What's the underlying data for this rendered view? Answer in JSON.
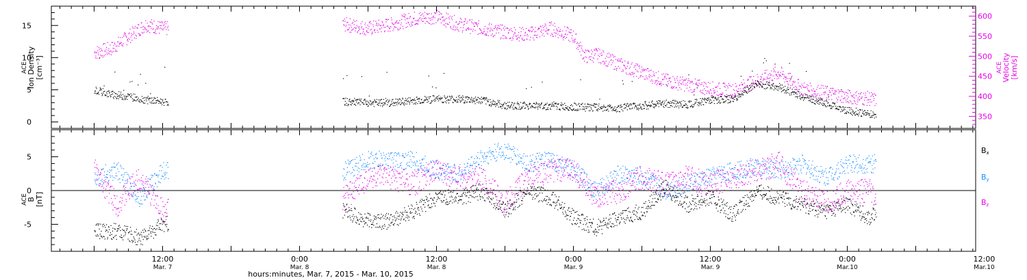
{
  "colors": {
    "density": "#000000",
    "velocity": "#e600e6",
    "bx": "#000000",
    "by": "#1a8cff",
    "bz": "#e600e6",
    "axis": "#000000"
  },
  "chart_data": [
    {
      "type": "scatter",
      "panel": "top",
      "ylabel_left": [
        "ACE",
        "Ion Density",
        "[cm⁻³]"
      ],
      "ylabel_right": [
        "ACE",
        "Velocity",
        "[km/s]"
      ],
      "ylim_left": [
        -1,
        18
      ],
      "yticks_left": [
        "0",
        "5",
        "10",
        "15"
      ],
      "ylim_right": [
        320,
        625
      ],
      "yticks_right": [
        "350",
        "400",
        "450",
        "500",
        "550",
        "600"
      ],
      "data_gaps_hours": [
        [
          13,
          43.5
        ]
      ],
      "series": [
        {
          "axis": "left",
          "x": [
            0,
            3,
            6,
            9,
            12,
            44,
            48,
            52,
            56,
            60,
            64,
            68,
            72,
            76,
            80,
            84,
            88,
            92,
            96,
            100,
            104,
            108,
            112,
            116,
            120,
            124,
            128,
            132,
            136,
            137
          ],
          "values": [
            5,
            4.3,
            4,
            3.5,
            3.2,
            3.2,
            3,
            3,
            3.4,
            3.6,
            3.6,
            3.4,
            2.6,
            2.6,
            2.5,
            2.4,
            2.3,
            2.2,
            2.6,
            2.9,
            2.8,
            3.5,
            3.6,
            6,
            5.5,
            4,
            3,
            1.8,
            1.3,
            1
          ]
        },
        {
          "axis": "right",
          "x": [
            0,
            3,
            5,
            7,
            9,
            12,
            44,
            48,
            52,
            56,
            60,
            64,
            68,
            72,
            76,
            80,
            84,
            86,
            88,
            92,
            96,
            100,
            104,
            108,
            112,
            116,
            120,
            124,
            128,
            132,
            136,
            137
          ],
          "values": [
            510,
            520,
            540,
            560,
            580,
            570,
            580,
            570,
            580,
            595,
            600,
            580,
            570,
            560,
            555,
            570,
            550,
            500,
            505,
            480,
            460,
            440,
            430,
            420,
            415,
            440,
            460,
            420,
            410,
            400,
            395,
            390
          ]
        }
      ]
    },
    {
      "type": "scatter",
      "panel": "bottom",
      "ylabel_left": [
        "ACE",
        "B",
        "[nT]"
      ],
      "ylim": [
        -9,
        9
      ],
      "yticks": [
        "-5",
        "0",
        "5"
      ],
      "data_gaps_hours": [
        [
          13,
          43.5
        ]
      ],
      "legend_position": "right",
      "series": [
        {
          "name": "Bx",
          "x": [
            0,
            4,
            8,
            12,
            44,
            48,
            52,
            56,
            60,
            64,
            68,
            72,
            76,
            80,
            84,
            88,
            92,
            96,
            100,
            104,
            108,
            112,
            116,
            120,
            124,
            128,
            132,
            136,
            137
          ],
          "values": [
            -6,
            -6,
            -7,
            -5,
            -3,
            -4.5,
            -4.5,
            -3,
            -1,
            -1,
            0,
            -3,
            0,
            -1,
            -4,
            -5.5,
            -4,
            -3,
            0.5,
            -2,
            -1,
            -3.5,
            0,
            -1,
            -2,
            -3,
            -2,
            -4,
            -3
          ]
        },
        {
          "name": "By",
          "x": [
            0,
            4,
            8,
            12,
            44,
            48,
            52,
            56,
            60,
            64,
            68,
            72,
            76,
            80,
            84,
            88,
            92,
            96,
            100,
            104,
            108,
            112,
            116,
            120,
            124,
            128,
            132,
            136,
            137
          ],
          "values": [
            2,
            3,
            -1,
            3,
            3,
            4.5,
            4.5,
            4.5,
            3,
            2.5,
            5,
            6,
            4,
            4.5,
            3,
            0,
            2.5,
            2,
            0,
            1,
            2,
            3,
            3.5,
            3,
            4,
            2,
            4,
            4,
            4
          ]
        },
        {
          "name": "Bz",
          "x": [
            0,
            4,
            8,
            12,
            44,
            48,
            52,
            56,
            60,
            64,
            68,
            72,
            76,
            80,
            84,
            88,
            92,
            96,
            100,
            104,
            108,
            112,
            116,
            120,
            124,
            128,
            132,
            136,
            137
          ],
          "values": [
            3,
            -2,
            2,
            -3,
            -1,
            2,
            2,
            1,
            3,
            2,
            2,
            -2,
            2,
            3,
            3,
            -1,
            0,
            2,
            1,
            2,
            1,
            2,
            3,
            4,
            0,
            -2,
            0,
            0,
            -2
          ]
        }
      ]
    }
  ],
  "legend": {
    "bx": "B",
    "bx_sub": "x",
    "by": "B",
    "by_sub": "y",
    "bz": "B",
    "bz_sub": "z"
  },
  "x_axis": {
    "hours_range": [
      -7.5,
      154.5
    ],
    "major_ticks": [
      {
        "hour": 12,
        "time": "12:00",
        "date": "Mar. 7"
      },
      {
        "hour": 36,
        "time": "0:00",
        "date": "Mar. 8"
      },
      {
        "hour": 60,
        "time": "12:00",
        "date": "Mar. 8"
      },
      {
        "hour": 84,
        "time": "0:00",
        "date": "Mar. 9"
      },
      {
        "hour": 108,
        "time": "12:00",
        "date": "Mar. 9"
      },
      {
        "hour": 132,
        "time": "0:00",
        "date": "Mar.10"
      },
      {
        "hour": 156,
        "time": "12:00",
        "date": "Mar.10"
      }
    ],
    "xlabel": "hours:minutes, Mar.  7, 2015 - Mar. 10, 2015"
  }
}
